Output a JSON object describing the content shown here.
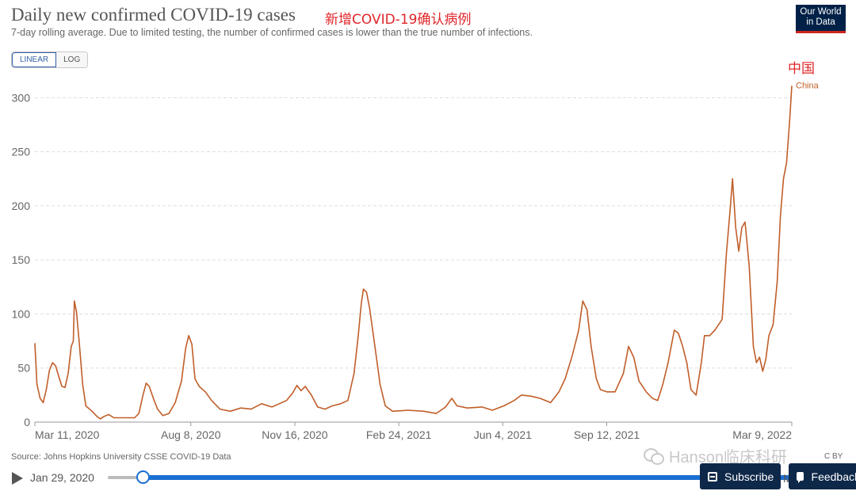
{
  "header": {
    "title": "Daily new confirmed COVID-19 cases",
    "title_cn": "新增COVID-19确认病例",
    "subtitle": "7-day rolling average. Due to limited testing, the number of confirmed cases is lower than the true number of infections.",
    "logo_line1": "Our World",
    "logo_line2": "in Data"
  },
  "controls": {
    "linear_label": "LINEAR",
    "log_label": "LOG",
    "selected": "LINEAR"
  },
  "chart_data": {
    "type": "line",
    "x_range": [
      "2020-01-29",
      "2022-03-11"
    ],
    "ylim": [
      0,
      320
    ],
    "y_ticks": [
      0,
      50,
      100,
      150,
      200,
      250,
      300
    ],
    "x_ticks": [
      {
        "date": "2020-03-11",
        "label": "Mar 11, 2020"
      },
      {
        "date": "2020-08-08",
        "label": "Aug 8, 2020"
      },
      {
        "date": "2020-11-16",
        "label": "Nov 16, 2020"
      },
      {
        "date": "2021-02-24",
        "label": "Feb 24, 2021"
      },
      {
        "date": "2021-06-04",
        "label": "Jun 4, 2021"
      },
      {
        "date": "2021-09-12",
        "label": "Sep 12, 2021"
      },
      {
        "date": "2022-03-09",
        "label": "Mar 9, 2022"
      }
    ],
    "grid": true,
    "series": [
      {
        "name": "China",
        "name_cn": "中国",
        "color": "#c15e29",
        "points": [
          [
            "2020-03-11",
            73
          ],
          [
            "2020-03-13",
            35
          ],
          [
            "2020-03-16",
            22
          ],
          [
            "2020-03-19",
            18
          ],
          [
            "2020-03-22",
            30
          ],
          [
            "2020-03-25",
            48
          ],
          [
            "2020-03-28",
            55
          ],
          [
            "2020-03-31",
            52
          ],
          [
            "2020-04-03",
            42
          ],
          [
            "2020-04-06",
            33
          ],
          [
            "2020-04-09",
            32
          ],
          [
            "2020-04-12",
            45
          ],
          [
            "2020-04-15",
            70
          ],
          [
            "2020-04-17",
            75
          ],
          [
            "2020-04-18",
            112
          ],
          [
            "2020-04-20",
            102
          ],
          [
            "2020-04-23",
            70
          ],
          [
            "2020-04-26",
            35
          ],
          [
            "2020-04-29",
            15
          ],
          [
            "2020-05-05",
            10
          ],
          [
            "2020-05-10",
            5
          ],
          [
            "2020-05-13",
            3
          ],
          [
            "2020-05-16",
            5
          ],
          [
            "2020-05-21",
            7
          ],
          [
            "2020-05-26",
            4
          ],
          [
            "2020-06-05",
            4
          ],
          [
            "2020-06-15",
            4
          ],
          [
            "2020-06-19",
            8
          ],
          [
            "2020-06-23",
            25
          ],
          [
            "2020-06-26",
            36
          ],
          [
            "2020-06-29",
            33
          ],
          [
            "2020-07-03",
            22
          ],
          [
            "2020-07-07",
            12
          ],
          [
            "2020-07-12",
            6
          ],
          [
            "2020-07-18",
            8
          ],
          [
            "2020-07-24",
            18
          ],
          [
            "2020-07-30",
            38
          ],
          [
            "2020-08-03",
            68
          ],
          [
            "2020-08-06",
            80
          ],
          [
            "2020-08-09",
            72
          ],
          [
            "2020-08-12",
            40
          ],
          [
            "2020-08-16",
            33
          ],
          [
            "2020-08-22",
            28
          ],
          [
            "2020-08-28",
            20
          ],
          [
            "2020-09-05",
            12
          ],
          [
            "2020-09-15",
            10
          ],
          [
            "2020-09-25",
            13
          ],
          [
            "2020-10-05",
            12
          ],
          [
            "2020-10-15",
            17
          ],
          [
            "2020-10-25",
            14
          ],
          [
            "2020-11-01",
            17
          ],
          [
            "2020-11-08",
            20
          ],
          [
            "2020-11-14",
            27
          ],
          [
            "2020-11-18",
            34
          ],
          [
            "2020-11-22",
            29
          ],
          [
            "2020-11-26",
            33
          ],
          [
            "2020-12-02",
            25
          ],
          [
            "2020-12-08",
            14
          ],
          [
            "2020-12-15",
            12
          ],
          [
            "2020-12-22",
            15
          ],
          [
            "2020-12-30",
            17
          ],
          [
            "2021-01-06",
            20
          ],
          [
            "2021-01-12",
            45
          ],
          [
            "2021-01-16",
            80
          ],
          [
            "2021-01-19",
            110
          ],
          [
            "2021-01-21",
            123
          ],
          [
            "2021-01-24",
            120
          ],
          [
            "2021-01-27",
            105
          ],
          [
            "2021-02-01",
            70
          ],
          [
            "2021-02-06",
            35
          ],
          [
            "2021-02-11",
            15
          ],
          [
            "2021-02-18",
            10
          ],
          [
            "2021-03-05",
            11
          ],
          [
            "2021-03-20",
            10
          ],
          [
            "2021-04-01",
            8
          ],
          [
            "2021-04-10",
            14
          ],
          [
            "2021-04-16",
            22
          ],
          [
            "2021-04-21",
            15
          ],
          [
            "2021-05-01",
            13
          ],
          [
            "2021-05-15",
            14
          ],
          [
            "2021-05-25",
            11
          ],
          [
            "2021-06-05",
            15
          ],
          [
            "2021-06-15",
            20
          ],
          [
            "2021-06-22",
            25
          ],
          [
            "2021-07-01",
            24
          ],
          [
            "2021-07-10",
            22
          ],
          [
            "2021-07-20",
            18
          ],
          [
            "2021-07-28",
            28
          ],
          [
            "2021-08-03",
            40
          ],
          [
            "2021-08-10",
            62
          ],
          [
            "2021-08-16",
            85
          ],
          [
            "2021-08-20",
            112
          ],
          [
            "2021-08-24",
            104
          ],
          [
            "2021-08-28",
            70
          ],
          [
            "2021-09-02",
            40
          ],
          [
            "2021-09-06",
            30
          ],
          [
            "2021-09-12",
            28
          ],
          [
            "2021-09-20",
            28
          ],
          [
            "2021-09-28",
            45
          ],
          [
            "2021-10-03",
            70
          ],
          [
            "2021-10-08",
            60
          ],
          [
            "2021-10-13",
            38
          ],
          [
            "2021-10-20",
            28
          ],
          [
            "2021-10-26",
            22
          ],
          [
            "2021-10-31",
            20
          ],
          [
            "2021-11-05",
            35
          ],
          [
            "2021-11-10",
            55
          ],
          [
            "2021-11-16",
            85
          ],
          [
            "2021-11-20",
            82
          ],
          [
            "2021-11-24",
            70
          ],
          [
            "2021-11-28",
            55
          ],
          [
            "2021-12-02",
            30
          ],
          [
            "2021-12-07",
            25
          ],
          [
            "2021-12-12",
            55
          ],
          [
            "2021-12-15",
            80
          ],
          [
            "2021-12-20",
            80
          ],
          [
            "2021-12-25",
            85
          ],
          [
            "2022-01-01",
            95
          ],
          [
            "2022-01-05",
            155
          ],
          [
            "2022-01-09",
            200
          ],
          [
            "2022-01-11",
            225
          ],
          [
            "2022-01-14",
            180
          ],
          [
            "2022-01-17",
            158
          ],
          [
            "2022-01-20",
            180
          ],
          [
            "2022-01-23",
            185
          ],
          [
            "2022-01-27",
            145
          ],
          [
            "2022-01-31",
            70
          ],
          [
            "2022-02-03",
            55
          ],
          [
            "2022-02-06",
            60
          ],
          [
            "2022-02-09",
            47
          ],
          [
            "2022-02-12",
            58
          ],
          [
            "2022-02-15",
            80
          ],
          [
            "2022-02-19",
            90
          ],
          [
            "2022-02-23",
            130
          ],
          [
            "2022-02-26",
            190
          ],
          [
            "2022-03-01",
            225
          ],
          [
            "2022-03-04",
            240
          ],
          [
            "2022-03-07",
            280
          ],
          [
            "2022-03-09",
            311
          ]
        ]
      }
    ]
  },
  "footer": {
    "source": "Source: Johns Hopkins University CSSE COVID-19 Data",
    "license_fragment": "C BY",
    "watermark": "Hanson临床科研",
    "timeline_start": "Jan 29, 2020",
    "timeline_end": "M",
    "timeline_position": 0.05,
    "subscribe_label": "Subscribe",
    "feedback_label": "Feedback"
  }
}
